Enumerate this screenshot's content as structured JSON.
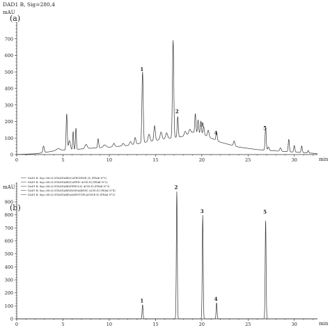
{
  "chart_data": [
    {
      "type": "line",
      "panel_label": "(a)",
      "title": "DAD1 B, Sig=280,4",
      "ylabel": "mAU",
      "xlabel": "min",
      "xlim": [
        0,
        32.5
      ],
      "ylim": [
        0,
        800
      ],
      "x_ticks": [
        "0",
        "5",
        "10",
        "15",
        "20",
        "25",
        "30"
      ],
      "y_ticks": [
        "0",
        "100",
        "200",
        "300",
        "400",
        "500",
        "600",
        "700"
      ],
      "peak_labels": [
        {
          "label": "1",
          "x": 13.6,
          "y": 505
        },
        {
          "label": "2",
          "x": 17.4,
          "y": 250
        },
        {
          "label": "3",
          "x": 20.1,
          "y": 170
        },
        {
          "label": "4",
          "x": 21.6,
          "y": 120
        },
        {
          "label": "5",
          "x": 26.9,
          "y": 150
        }
      ],
      "series": [
        {
          "baseline": [
            [
              0,
              0
            ],
            [
              2,
              5
            ],
            [
              3,
              12
            ],
            [
              4,
              22
            ],
            [
              6,
              30
            ],
            [
              8,
              38
            ],
            [
              10,
              45
            ],
            [
              12,
              55
            ],
            [
              14,
              75
            ],
            [
              16,
              95
            ],
            [
              18,
              110
            ],
            [
              19,
              135
            ],
            [
              20,
              125
            ],
            [
              22,
              75
            ],
            [
              24,
              45
            ],
            [
              26,
              30
            ],
            [
              28,
              22
            ],
            [
              30,
              15
            ],
            [
              32,
              8
            ],
            [
              32.5,
              5
            ]
          ],
          "peaks": [
            [
              2.9,
              40,
              0.08
            ],
            [
              4.5,
              12,
              0.2
            ],
            [
              5.4,
              220,
              0.06
            ],
            [
              5.7,
              55,
              0.1
            ],
            [
              6.1,
              110,
              0.05
            ],
            [
              6.4,
              130,
              0.05
            ],
            [
              7.5,
              25,
              0.12
            ],
            [
              8.8,
              55,
              0.06
            ],
            [
              9.5,
              15,
              0.15
            ],
            [
              10.5,
              20,
              0.1
            ],
            [
              11.5,
              15,
              0.1
            ],
            [
              12.3,
              20,
              0.1
            ],
            [
              12.8,
              40,
              0.08
            ],
            [
              13.6,
              430,
              0.07
            ],
            [
              14.3,
              45,
              0.1
            ],
            [
              14.9,
              90,
              0.08
            ],
            [
              15.6,
              45,
              0.1
            ],
            [
              16.2,
              35,
              0.1
            ],
            [
              16.9,
              590,
              0.07
            ],
            [
              17.4,
              125,
              0.06
            ],
            [
              18.2,
              25,
              0.1
            ],
            [
              18.7,
              25,
              0.1
            ],
            [
              19.3,
              115,
              0.06
            ],
            [
              19.6,
              80,
              0.06
            ],
            [
              19.9,
              75,
              0.06
            ],
            [
              20.2,
              50,
              0.07
            ],
            [
              20.7,
              40,
              0.08
            ],
            [
              21.6,
              50,
              0.07
            ],
            [
              23.5,
              30,
              0.08
            ],
            [
              26.9,
              140,
              0.06
            ],
            [
              27.2,
              20,
              0.08
            ],
            [
              28.5,
              20,
              0.08
            ],
            [
              29.4,
              75,
              0.06
            ],
            [
              30.0,
              40,
              0.06
            ],
            [
              30.8,
              40,
              0.06
            ],
            [
              31.5,
              15,
              0.06
            ]
          ]
        }
      ]
    },
    {
      "type": "line",
      "panel_label": "(b)",
      "ylabel": "mAU",
      "xlabel": "min",
      "xlim": [
        0,
        32.5
      ],
      "ylim": [
        0,
        1050
      ],
      "x_ticks": [
        "0",
        "5",
        "10",
        "15",
        "20",
        "25",
        "30"
      ],
      "y_ticks": [
        "0",
        "100",
        "200",
        "300",
        "400",
        "500",
        "600",
        "700",
        "800",
        "900"
      ],
      "legend": [
        "DAD1 B, Sig=280,4   (STANDARD\\CATECHINE_D)  (PEAK N°1)",
        "DAD1 B, Sig=280,4   (STANDARD\\CAFEIC ACID.D)  (PEAK N°2)",
        "DAD1 B, Sig=280,4   (STANDARD\\FERULIC ACID.D)  (PEAK N°3)",
        "DAD1 B, Sig=280,4   (STANDARD\\ROSMARINIC ACID.D)  (PEAK N°4)",
        "DAD1 B, Sig=280,4   (STANDARD\\AMENTOFLAVONE.D)  (PEAK N°5)"
      ],
      "legend_position": "top-left",
      "peak_labels": [
        {
          "label": "1",
          "x": 13.6,
          "y": 125
        },
        {
          "label": "2",
          "x": 17.3,
          "y": 1000
        },
        {
          "label": "3",
          "x": 20.1,
          "y": 815
        },
        {
          "label": "4",
          "x": 21.6,
          "y": 140
        },
        {
          "label": "5",
          "x": 26.9,
          "y": 810
        }
      ],
      "series": [
        {
          "baseline": [
            [
              0,
              0
            ],
            [
              32.5,
              0
            ]
          ],
          "peaks": [
            [
              13.6,
              110,
              0.05
            ],
            [
              17.3,
              985,
              0.05
            ],
            [
              20.1,
              800,
              0.05
            ],
            [
              21.6,
              125,
              0.05
            ],
            [
              26.9,
              760,
              0.05
            ]
          ]
        }
      ]
    }
  ]
}
